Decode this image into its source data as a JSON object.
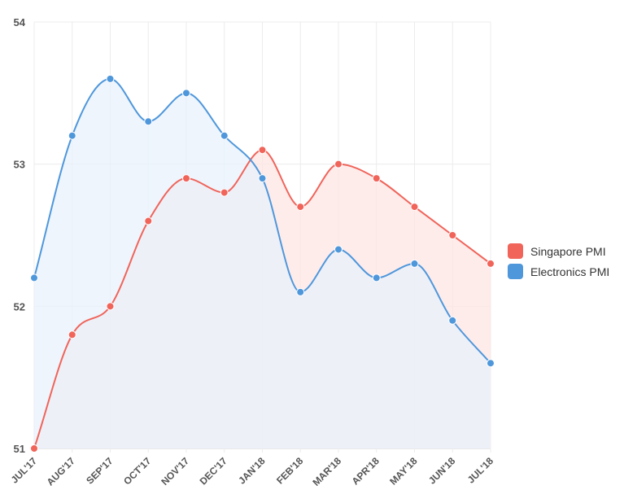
{
  "chart_data": {
    "type": "line",
    "title": "",
    "xlabel": "",
    "ylabel": "",
    "categories": [
      "JUL'17",
      "AUG'17",
      "SEP'17",
      "OCT'17",
      "NOV'17",
      "DEC'17",
      "JAN'18",
      "FEB'18",
      "MAR'18",
      "APR'18",
      "MAY'18",
      "JUN'18",
      "JUL'18"
    ],
    "ylim": [
      51,
      54
    ],
    "yticks": [
      "51",
      "52",
      "53",
      "54"
    ],
    "grid": true,
    "legend_position": "right",
    "series": [
      {
        "name": "Singapore PMI",
        "color": "#f0645a",
        "fill": "#fde6e4",
        "values": [
          51.0,
          51.8,
          52.0,
          52.6,
          52.9,
          52.8,
          53.1,
          52.7,
          53.0,
          52.9,
          52.7,
          52.5,
          52.3
        ]
      },
      {
        "name": "Electronics PMI",
        "color": "#4f97db",
        "fill": "#e8f1fc",
        "values": [
          52.2,
          53.2,
          53.6,
          53.3,
          53.5,
          53.2,
          52.9,
          52.1,
          52.4,
          52.2,
          52.3,
          51.9,
          51.6
        ]
      }
    ]
  }
}
